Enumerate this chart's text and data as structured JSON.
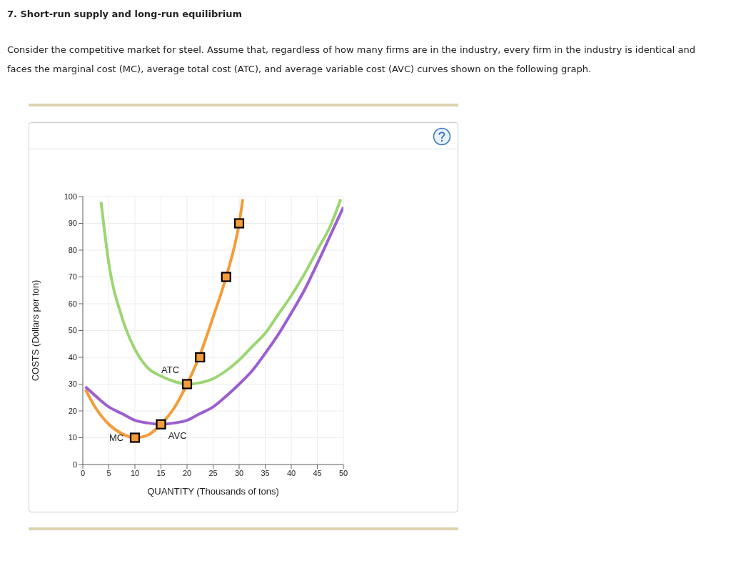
{
  "chart_data": {
    "type": "line",
    "title": "7. Short-run supply and long-run equilibrium",
    "subtitle": "Consider the competitive market for steel. Assume that, regardless of how many firms are in the industry, every firm in the industry is identical and faces the marginal cost (MC), average total cost (ATC), and average variable cost (AVC) curves shown on the following graph.",
    "xlabel": "QUANTITY (Thousands of tons)",
    "ylabel": "COSTS (Dollars per ton)",
    "xlim": [
      0,
      50
    ],
    "xticks": [
      0,
      5,
      10,
      15,
      20,
      25,
      30,
      35,
      40,
      45,
      50
    ],
    "ylim": [
      0,
      100
    ],
    "yticks": [
      0,
      10,
      20,
      30,
      40,
      50,
      60,
      70,
      80,
      90,
      100
    ],
    "grid": true,
    "marker": "none",
    "series": [
      {
        "name": "MC",
        "color": "#f39c38",
        "x": [
          0.5,
          2.5,
          5,
          7.5,
          10,
          12.5,
          15,
          17.5,
          20,
          22.5,
          25,
          27.5,
          30,
          30.7
        ],
        "values": [
          28,
          21,
          15,
          11.5,
          10,
          11,
          15,
          21,
          30,
          41,
          55,
          70,
          90,
          99
        ]
      },
      {
        "name": "ATC",
        "color": "#9bd672",
        "x": [
          3.5,
          5,
          7.5,
          10,
          12.5,
          15,
          17.5,
          20,
          22.5,
          25,
          27.5,
          30,
          32.5,
          35,
          37.5,
          40,
          42.5,
          45,
          47.5,
          49.5
        ],
        "values": [
          98,
          75,
          55,
          43,
          36,
          33,
          31,
          30,
          30.5,
          32,
          35,
          39,
          44,
          49,
          56,
          63,
          71,
          80,
          89,
          99
        ]
      },
      {
        "name": "AVC",
        "color": "#9b5fd0",
        "x": [
          0.5,
          2.5,
          5,
          7.5,
          10,
          12.5,
          15,
          17.5,
          20,
          22.5,
          25,
          27.5,
          30,
          32.5,
          35,
          37.5,
          40,
          42.5,
          45,
          47.5,
          50
        ],
        "values": [
          29,
          25.5,
          21.5,
          19,
          16.5,
          15.5,
          15,
          15.5,
          16.5,
          19,
          21.5,
          25.5,
          30,
          35,
          41.5,
          48.5,
          56.5,
          65,
          75,
          85.5,
          96
        ]
      },
      {
        "type": "scatter",
        "color": "#f39c38",
        "marker": "square",
        "x": [
          10,
          15,
          20,
          22.5,
          27.5,
          30
        ],
        "values": [
          10,
          15,
          30,
          40,
          70,
          90
        ]
      }
    ]
  }
}
